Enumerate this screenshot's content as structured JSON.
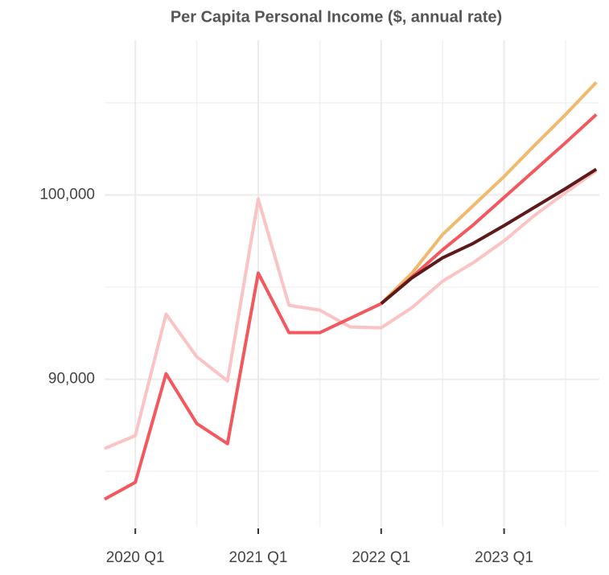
{
  "chart_data": {
    "type": "line",
    "title": "Per Capita Personal Income ($, annual rate)",
    "categories": [
      null,
      "2020 Q1",
      null,
      null,
      null,
      "2021 Q1",
      null,
      null,
      null,
      "2022 Q1",
      null,
      null,
      null,
      "2023 Q1",
      null,
      null,
      null
    ],
    "series": [
      {
        "color": "#fbc3c3",
        "values": [
          86244,
          86943,
          93537,
          91222,
          89912,
          99782,
          94017,
          93755,
          92838,
          92795,
          93886,
          95327,
          96332,
          97511,
          98908,
          100131,
          101310
        ]
      },
      {
        "color": "#f0b96c",
        "values": [
          null,
          null,
          null,
          null,
          null,
          null,
          null,
          null,
          null,
          94105,
          95764,
          97860,
          99432,
          101004,
          102708,
          104367,
          106114
        ]
      },
      {
        "color": "#f2585e",
        "values": [
          83493,
          84410,
          90305,
          87598,
          86506,
          95764,
          92532,
          92532,
          93318,
          94105,
          95546,
          97030,
          98384,
          99869,
          101354,
          102839,
          104367
        ]
      },
      {
        "color": "#5e1a1a",
        "values": [
          null,
          null,
          null,
          null,
          null,
          null,
          null,
          null,
          null,
          94105,
          95502,
          96594,
          97380,
          98341,
          99345,
          100349,
          101397
        ]
      }
    ],
    "ylim": [
      82000,
      108400
    ],
    "yticks": [
      {
        "value": 90000,
        "label": "90,000"
      },
      {
        "value": 100000,
        "label": "100,000"
      }
    ],
    "y_minor_ticks": [
      85000,
      95000,
      105000
    ],
    "grid": true
  }
}
